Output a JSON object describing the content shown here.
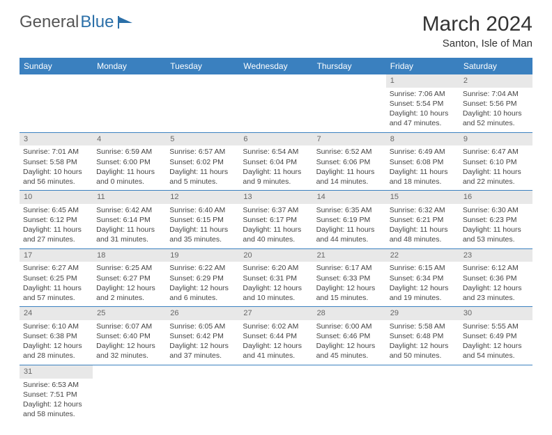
{
  "logo": {
    "part1": "General",
    "part2": "Blue"
  },
  "title": "March 2024",
  "location": "Santon, Isle of Man",
  "header_bg": "#3a80bf",
  "header_fg": "#ffffff",
  "daynum_bg": "#e8e8e8",
  "border_color": "#3a80bf",
  "weekdays": [
    "Sunday",
    "Monday",
    "Tuesday",
    "Wednesday",
    "Thursday",
    "Friday",
    "Saturday"
  ],
  "weeks": [
    [
      null,
      null,
      null,
      null,
      null,
      {
        "n": "1",
        "sr": "Sunrise: 7:06 AM",
        "ss": "Sunset: 5:54 PM",
        "dl": "Daylight: 10 hours and 47 minutes."
      },
      {
        "n": "2",
        "sr": "Sunrise: 7:04 AM",
        "ss": "Sunset: 5:56 PM",
        "dl": "Daylight: 10 hours and 52 minutes."
      }
    ],
    [
      {
        "n": "3",
        "sr": "Sunrise: 7:01 AM",
        "ss": "Sunset: 5:58 PM",
        "dl": "Daylight: 10 hours and 56 minutes."
      },
      {
        "n": "4",
        "sr": "Sunrise: 6:59 AM",
        "ss": "Sunset: 6:00 PM",
        "dl": "Daylight: 11 hours and 0 minutes."
      },
      {
        "n": "5",
        "sr": "Sunrise: 6:57 AM",
        "ss": "Sunset: 6:02 PM",
        "dl": "Daylight: 11 hours and 5 minutes."
      },
      {
        "n": "6",
        "sr": "Sunrise: 6:54 AM",
        "ss": "Sunset: 6:04 PM",
        "dl": "Daylight: 11 hours and 9 minutes."
      },
      {
        "n": "7",
        "sr": "Sunrise: 6:52 AM",
        "ss": "Sunset: 6:06 PM",
        "dl": "Daylight: 11 hours and 14 minutes."
      },
      {
        "n": "8",
        "sr": "Sunrise: 6:49 AM",
        "ss": "Sunset: 6:08 PM",
        "dl": "Daylight: 11 hours and 18 minutes."
      },
      {
        "n": "9",
        "sr": "Sunrise: 6:47 AM",
        "ss": "Sunset: 6:10 PM",
        "dl": "Daylight: 11 hours and 22 minutes."
      }
    ],
    [
      {
        "n": "10",
        "sr": "Sunrise: 6:45 AM",
        "ss": "Sunset: 6:12 PM",
        "dl": "Daylight: 11 hours and 27 minutes."
      },
      {
        "n": "11",
        "sr": "Sunrise: 6:42 AM",
        "ss": "Sunset: 6:14 PM",
        "dl": "Daylight: 11 hours and 31 minutes."
      },
      {
        "n": "12",
        "sr": "Sunrise: 6:40 AM",
        "ss": "Sunset: 6:15 PM",
        "dl": "Daylight: 11 hours and 35 minutes."
      },
      {
        "n": "13",
        "sr": "Sunrise: 6:37 AM",
        "ss": "Sunset: 6:17 PM",
        "dl": "Daylight: 11 hours and 40 minutes."
      },
      {
        "n": "14",
        "sr": "Sunrise: 6:35 AM",
        "ss": "Sunset: 6:19 PM",
        "dl": "Daylight: 11 hours and 44 minutes."
      },
      {
        "n": "15",
        "sr": "Sunrise: 6:32 AM",
        "ss": "Sunset: 6:21 PM",
        "dl": "Daylight: 11 hours and 48 minutes."
      },
      {
        "n": "16",
        "sr": "Sunrise: 6:30 AM",
        "ss": "Sunset: 6:23 PM",
        "dl": "Daylight: 11 hours and 53 minutes."
      }
    ],
    [
      {
        "n": "17",
        "sr": "Sunrise: 6:27 AM",
        "ss": "Sunset: 6:25 PM",
        "dl": "Daylight: 11 hours and 57 minutes."
      },
      {
        "n": "18",
        "sr": "Sunrise: 6:25 AM",
        "ss": "Sunset: 6:27 PM",
        "dl": "Daylight: 12 hours and 2 minutes."
      },
      {
        "n": "19",
        "sr": "Sunrise: 6:22 AM",
        "ss": "Sunset: 6:29 PM",
        "dl": "Daylight: 12 hours and 6 minutes."
      },
      {
        "n": "20",
        "sr": "Sunrise: 6:20 AM",
        "ss": "Sunset: 6:31 PM",
        "dl": "Daylight: 12 hours and 10 minutes."
      },
      {
        "n": "21",
        "sr": "Sunrise: 6:17 AM",
        "ss": "Sunset: 6:33 PM",
        "dl": "Daylight: 12 hours and 15 minutes."
      },
      {
        "n": "22",
        "sr": "Sunrise: 6:15 AM",
        "ss": "Sunset: 6:34 PM",
        "dl": "Daylight: 12 hours and 19 minutes."
      },
      {
        "n": "23",
        "sr": "Sunrise: 6:12 AM",
        "ss": "Sunset: 6:36 PM",
        "dl": "Daylight: 12 hours and 23 minutes."
      }
    ],
    [
      {
        "n": "24",
        "sr": "Sunrise: 6:10 AM",
        "ss": "Sunset: 6:38 PM",
        "dl": "Daylight: 12 hours and 28 minutes."
      },
      {
        "n": "25",
        "sr": "Sunrise: 6:07 AM",
        "ss": "Sunset: 6:40 PM",
        "dl": "Daylight: 12 hours and 32 minutes."
      },
      {
        "n": "26",
        "sr": "Sunrise: 6:05 AM",
        "ss": "Sunset: 6:42 PM",
        "dl": "Daylight: 12 hours and 37 minutes."
      },
      {
        "n": "27",
        "sr": "Sunrise: 6:02 AM",
        "ss": "Sunset: 6:44 PM",
        "dl": "Daylight: 12 hours and 41 minutes."
      },
      {
        "n": "28",
        "sr": "Sunrise: 6:00 AM",
        "ss": "Sunset: 6:46 PM",
        "dl": "Daylight: 12 hours and 45 minutes."
      },
      {
        "n": "29",
        "sr": "Sunrise: 5:58 AM",
        "ss": "Sunset: 6:48 PM",
        "dl": "Daylight: 12 hours and 50 minutes."
      },
      {
        "n": "30",
        "sr": "Sunrise: 5:55 AM",
        "ss": "Sunset: 6:49 PM",
        "dl": "Daylight: 12 hours and 54 minutes."
      }
    ],
    [
      {
        "n": "31",
        "sr": "Sunrise: 6:53 AM",
        "ss": "Sunset: 7:51 PM",
        "dl": "Daylight: 12 hours and 58 minutes."
      },
      null,
      null,
      null,
      null,
      null,
      null
    ]
  ]
}
